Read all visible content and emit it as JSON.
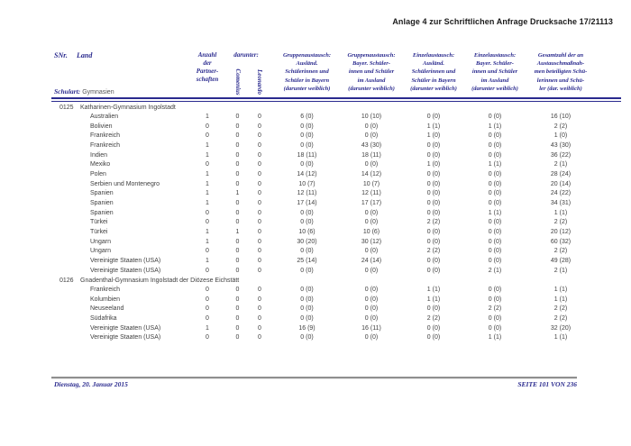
{
  "doc_header": "Anlage 4 zur Schriftlichen Anfrage Drucksache 17/21113",
  "table_header": {
    "snr": "SNr.",
    "land": "Land",
    "schulart_label": "Schulart:",
    "schulart_value": "Gymnasien",
    "anzahl": "Anzahl\nder\nPartner-\nschaften",
    "darunter": "darunter:",
    "comenius": "Comenius",
    "leonardo": "Leonardo",
    "col_gruppen_ausland": "Gruppenaustausch:\nAusländ.\nSchülerinnen und\nSchüler in Bayern\n(darunter weiblich)",
    "col_gruppen_bayern": "Gruppenaustausch:\nBayer. Schüler-\ninnen und Schüler\nim Ausland\n(darunter weiblich)",
    "col_einzel_ausland": "Einzelaustausch:\nAusländ.\nSchülerinnen und\nSchüler in Bayern\n(darunter weiblich)",
    "col_einzel_bayern": "Einzelaustausch:\nBayer. Schüler-\ninnen und Schüler\nim Ausland\n(darunter weiblich)",
    "col_gesamt": "Gesamtzahl der an\nAustauschmaßnah-\nmen beteiligten Schü-\nlerinnen und Schü-\nler (dar. weiblich)"
  },
  "sections": [
    {
      "snr": "0125",
      "name": "Katharinen-Gymnasium Ingolstadt",
      "rows": [
        {
          "land": "Australien",
          "cells": [
            "1",
            "0",
            "0",
            "6 (0)",
            "10 (10)",
            "0 (0)",
            "0 (0)",
            "16 (10)"
          ]
        },
        {
          "land": "Bolivien",
          "cells": [
            "0",
            "0",
            "0",
            "0 (0)",
            "0 (0)",
            "1 (1)",
            "1 (1)",
            "2 (2)"
          ]
        },
        {
          "land": "Frankreich",
          "cells": [
            "0",
            "0",
            "0",
            "0 (0)",
            "0 (0)",
            "1 (0)",
            "0 (0)",
            "1 (0)"
          ]
        },
        {
          "land": "Frankreich",
          "cells": [
            "1",
            "0",
            "0",
            "0 (0)",
            "43 (30)",
            "0 (0)",
            "0 (0)",
            "43 (30)"
          ]
        },
        {
          "land": "Indien",
          "cells": [
            "1",
            "0",
            "0",
            "18 (11)",
            "18 (11)",
            "0 (0)",
            "0 (0)",
            "36 (22)"
          ]
        },
        {
          "land": "Mexiko",
          "cells": [
            "0",
            "0",
            "0",
            "0 (0)",
            "0 (0)",
            "1 (0)",
            "1 (1)",
            "2 (1)"
          ]
        },
        {
          "land": "Polen",
          "cells": [
            "1",
            "0",
            "0",
            "14 (12)",
            "14 (12)",
            "0 (0)",
            "0 (0)",
            "28 (24)"
          ]
        },
        {
          "land": "Serbien und Montenegro",
          "cells": [
            "1",
            "0",
            "0",
            "10 (7)",
            "10 (7)",
            "0 (0)",
            "0 (0)",
            "20 (14)"
          ]
        },
        {
          "land": "Spanien",
          "cells": [
            "1",
            "1",
            "0",
            "12 (11)",
            "12 (11)",
            "0 (0)",
            "0 (0)",
            "24 (22)"
          ]
        },
        {
          "land": "Spanien",
          "cells": [
            "1",
            "0",
            "0",
            "17 (14)",
            "17 (17)",
            "0 (0)",
            "0 (0)",
            "34 (31)"
          ]
        },
        {
          "land": "Spanien",
          "cells": [
            "0",
            "0",
            "0",
            "0 (0)",
            "0 (0)",
            "0 (0)",
            "1 (1)",
            "1 (1)"
          ]
        },
        {
          "land": "Türkei",
          "cells": [
            "0",
            "0",
            "0",
            "0 (0)",
            "0 (0)",
            "2 (2)",
            "0 (0)",
            "2 (2)"
          ]
        },
        {
          "land": "Türkei",
          "cells": [
            "1",
            "1",
            "0",
            "10 (6)",
            "10 (6)",
            "0 (0)",
            "0 (0)",
            "20 (12)"
          ]
        },
        {
          "land": "Ungarn",
          "cells": [
            "1",
            "0",
            "0",
            "30 (20)",
            "30 (12)",
            "0 (0)",
            "0 (0)",
            "60 (32)"
          ]
        },
        {
          "land": "Ungarn",
          "cells": [
            "0",
            "0",
            "0",
            "0 (0)",
            "0 (0)",
            "2 (2)",
            "0 (0)",
            "2 (2)"
          ]
        },
        {
          "land": "Vereinigte Staaten (USA)",
          "cells": [
            "1",
            "0",
            "0",
            "25 (14)",
            "24 (14)",
            "0 (0)",
            "0 (0)",
            "49 (28)"
          ]
        },
        {
          "land": "Vereinigte Staaten (USA)",
          "cells": [
            "0",
            "0",
            "0",
            "0 (0)",
            "0 (0)",
            "0 (0)",
            "2 (1)",
            "2 (1)"
          ]
        }
      ]
    },
    {
      "snr": "0126",
      "name": "Gnadenthal-Gymnasium Ingolstadt der Diözese Eichstätt",
      "rows": [
        {
          "land": "Frankreich",
          "cells": [
            "0",
            "0",
            "0",
            "0 (0)",
            "0 (0)",
            "1 (1)",
            "0 (0)",
            "1 (1)"
          ]
        },
        {
          "land": "Kolumbien",
          "cells": [
            "0",
            "0",
            "0",
            "0 (0)",
            "0 (0)",
            "1 (1)",
            "0 (0)",
            "1 (1)"
          ]
        },
        {
          "land": "Neuseeland",
          "cells": [
            "0",
            "0",
            "0",
            "0 (0)",
            "0 (0)",
            "0 (0)",
            "2 (2)",
            "2 (2)"
          ]
        },
        {
          "land": "Südafrika",
          "cells": [
            "0",
            "0",
            "0",
            "0 (0)",
            "0 (0)",
            "2 (2)",
            "0 (0)",
            "2 (2)"
          ]
        },
        {
          "land": "Vereinigte Staaten (USA)",
          "cells": [
            "1",
            "0",
            "0",
            "16 (9)",
            "16 (11)",
            "0 (0)",
            "0 (0)",
            "32 (20)"
          ]
        },
        {
          "land": "Vereinigte Staaten (USA)",
          "cells": [
            "0",
            "0",
            "0",
            "0 (0)",
            "0 (0)",
            "0 (0)",
            "1 (1)",
            "1 (1)"
          ]
        }
      ]
    }
  ],
  "footer": {
    "date": "Dienstag, 20. Januar 2015",
    "page": "SEITE 101 VON 236"
  },
  "colors": {
    "navy": "#2a2a8e",
    "body_text": "#3f3f3f"
  }
}
